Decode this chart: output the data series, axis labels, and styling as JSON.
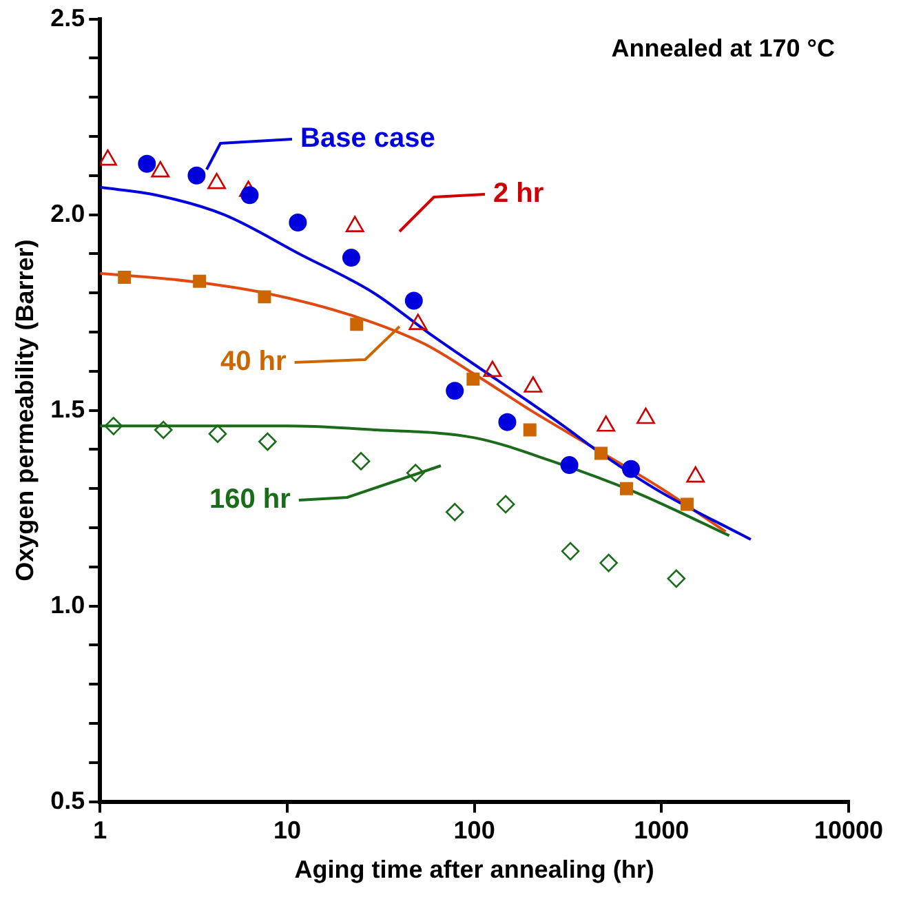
{
  "chart_data": {
    "type": "scatter",
    "xlabel": "Aging time after annealing (hr)",
    "ylabel": "Oxygen permeability (Barrer)",
    "log": "x",
    "xlim": [
      1,
      10000
    ],
    "xticks": [
      1,
      10,
      100,
      1000,
      10000
    ],
    "ylim": [
      0.5,
      2.5
    ],
    "yticks": [
      0.5,
      {
        "value": 0.6,
        "label": null
      },
      {
        "value": 0.7,
        "label": null
      },
      {
        "value": 0.8,
        "label": null
      },
      {
        "value": 0.9,
        "label": null
      },
      {
        "value": 1.0,
        "label": "1.0"
      },
      {
        "value": 1.1,
        "label": null
      },
      {
        "value": 1.2,
        "label": null
      },
      {
        "value": 1.3,
        "label": null
      },
      {
        "value": 1.4,
        "label": null
      },
      1.5,
      {
        "value": 1.6,
        "label": null
      },
      {
        "value": 1.7,
        "label": null
      },
      {
        "value": 1.8,
        "label": null
      },
      {
        "value": 1.9,
        "label": null
      },
      {
        "value": 2.0,
        "label": "2.0"
      },
      {
        "value": 2.1,
        "label": null
      },
      {
        "value": 2.2,
        "label": null
      },
      {
        "value": 2.3,
        "label": null
      },
      {
        "value": 2.4,
        "label": null
      },
      2.5
    ],
    "grid": false,
    "legend": "top left",
    "annotations": [
      "Annealed at 170 °C"
    ],
    "series": [
      {
        "name": "Base case",
        "marker": "circle",
        "color": "#0000dd",
        "x": [
          1.78,
          3.28,
          6.3,
          11.4,
          22,
          47.5,
          78.6,
          150,
          322,
          687
        ],
        "values": [
          2.13,
          2.1,
          2.05,
          1.98,
          1.89,
          1.78,
          1.55,
          1.47,
          1.36,
          1.35
        ]
      },
      {
        "name": "2 hr",
        "marker": "triangle",
        "color": "#cc0000",
        "x": [
          1.1,
          2.1,
          4.2,
          6.2,
          23,
          50,
          125,
          206,
          505,
          824,
          1520
        ],
        "values": [
          2.14,
          2.11,
          2.08,
          2.06,
          1.97,
          1.72,
          1.6,
          1.56,
          1.46,
          1.48,
          1.33
        ]
      },
      {
        "name": "40 hr",
        "marker": "square",
        "color": "#cc6600",
        "x": [
          1.35,
          3.4,
          7.56,
          23.5,
          98.5,
          198,
          475,
          650,
          1370
        ],
        "values": [
          1.84,
          1.83,
          1.79,
          1.72,
          1.58,
          1.45,
          1.39,
          1.3,
          1.26
        ]
      },
      {
        "name": "160 hr",
        "marker": "diamond",
        "color": "#1a6b1a",
        "x": [
          1.18,
          2.18,
          4.25,
          7.85,
          24.8,
          48.5,
          78.6,
          147,
          326,
          522,
          1200
        ],
        "values": [
          1.46,
          1.45,
          1.44,
          1.42,
          1.37,
          1.34,
          1.24,
          1.26,
          1.14,
          1.11,
          1.07
        ]
      },
      {
        "type": "line",
        "color": "#0000dd",
        "x": [
          1,
          2,
          4.6,
          11.6,
          29,
          60,
          130,
          300,
          475,
          1000,
          3000
        ],
        "values": [
          2.07,
          2.05,
          2.0,
          1.9,
          1.8,
          1.69,
          1.58,
          1.46,
          1.39,
          1.29,
          1.17
        ]
      },
      {
        "type": "line",
        "color": "#e04a10",
        "x": [
          1,
          3,
          7.6,
          23,
          54,
          102,
          200,
          450,
          1000,
          2200
        ],
        "values": [
          1.85,
          1.83,
          1.8,
          1.74,
          1.67,
          1.59,
          1.5,
          1.4,
          1.3,
          1.19
        ]
      },
      {
        "type": "line",
        "color": "#1a6b1a",
        "x": [
          1,
          10,
          30,
          100,
          260,
          730,
          2300
        ],
        "values": [
          1.46,
          1.46,
          1.45,
          1.43,
          1.37,
          1.29,
          1.18
        ]
      }
    ]
  }
}
